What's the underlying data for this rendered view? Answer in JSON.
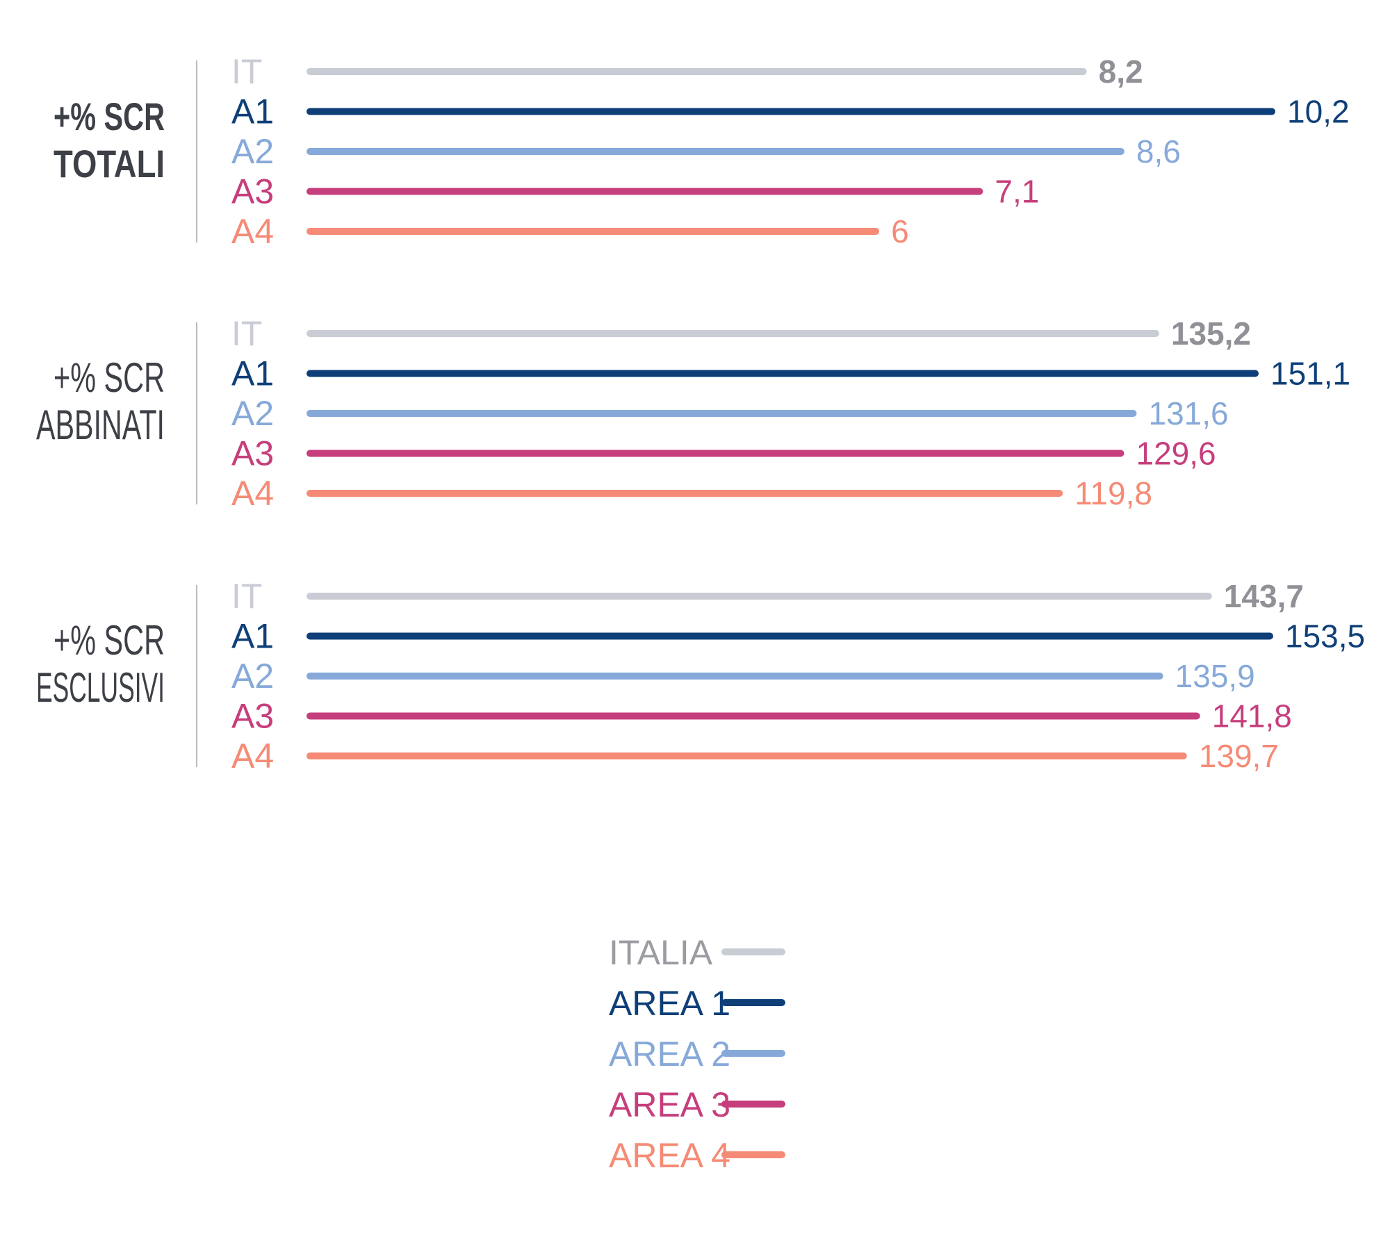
{
  "chart_data": {
    "type": "bar",
    "orientation": "horizontal",
    "groups": [
      {
        "title_lines": [
          "+% SCR",
          "TOTALI"
        ],
        "bold": true,
        "categories": [
          "IT",
          "A1",
          "A2",
          "A3",
          "A4"
        ],
        "values": [
          8.2,
          10.2,
          8.6,
          7.1,
          6
        ],
        "value_labels": [
          "8,2",
          "10,2",
          "8,6",
          "7,1",
          "6"
        ]
      },
      {
        "title_lines": [
          "+% SCR",
          "ABBINATI"
        ],
        "bold": false,
        "categories": [
          "IT",
          "A1",
          "A2",
          "A3",
          "A4"
        ],
        "values": [
          135.2,
          151.1,
          131.6,
          129.6,
          119.8
        ],
        "value_labels": [
          "135,2",
          "151,1",
          "131,6",
          "129,6",
          "119,8"
        ]
      },
      {
        "title_lines": [
          "+% SCR",
          "ESCLUSIVI"
        ],
        "bold": false,
        "categories": [
          "IT",
          "A1",
          "A2",
          "A3",
          "A4"
        ],
        "values": [
          143.7,
          153.5,
          135.9,
          141.8,
          139.7
        ],
        "value_labels": [
          "143,7",
          "153,5",
          "135,9",
          "141,8",
          "139,7"
        ]
      }
    ],
    "legend": {
      "placement": "bottom-center",
      "items": [
        "ITALIA",
        "AREA 1",
        "AREA 2",
        "AREA 3",
        "AREA 4"
      ]
    },
    "colors": [
      "#c9ccd4",
      "#0e3f78",
      "#86a9d9",
      "#c63e7c",
      "#f58b76"
    ],
    "value_label_colors": [
      "#8f9196",
      "#0e3f78",
      "#86a9d9",
      "#c63e7c",
      "#f58b76"
    ],
    "first_value_bold": true,
    "grid": false
  }
}
